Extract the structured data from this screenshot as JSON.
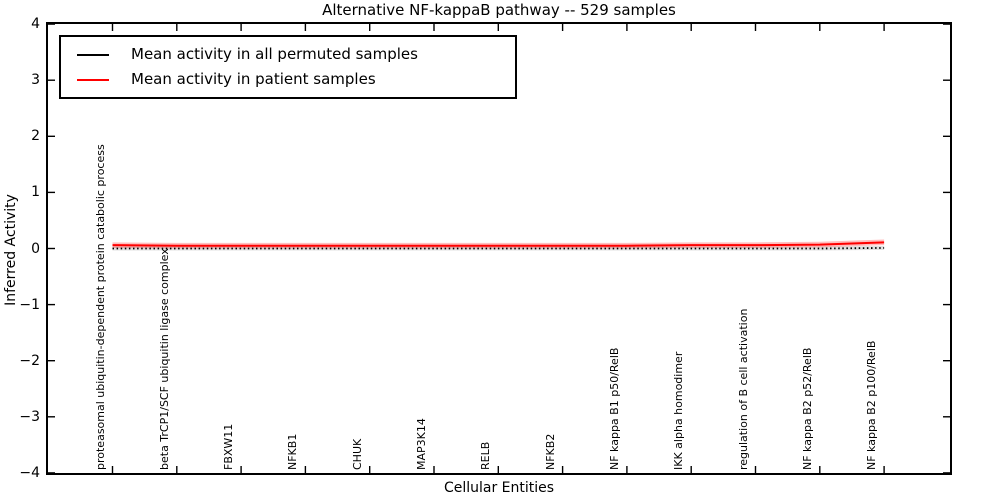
{
  "chart_data": {
    "type": "line",
    "title": "Alternative NF-kappaB pathway -- 529 samples",
    "xlabel": "Cellular Entities",
    "ylabel": "Inferred Activity",
    "ylim": [
      -4,
      4
    ],
    "xlim": [
      -1,
      13
    ],
    "grid": false,
    "legend_position": "upper-left",
    "ytick_labels": [
      "4",
      "3",
      "2",
      "1",
      "0",
      "−1",
      "−2",
      "−3",
      "−4"
    ],
    "ytick_values": [
      4,
      3,
      2,
      1,
      0,
      -1,
      -2,
      -3,
      -4
    ],
    "categories": [
      "proteasomal ubiquitin-dependent protein catabolic process",
      "beta TrCP1/SCF ubiquitin ligase complex",
      "FBXW11",
      "NFKB1",
      "CHUK",
      "MAP3K14",
      "RELB",
      "NFKB2",
      "NF kappa B1 p50/RelB",
      "IKK alpha homodimer",
      "regulation of B cell activation",
      "NF kappa B2 p52/RelB",
      "NF kappa B2 p100/RelB"
    ],
    "series": [
      {
        "name": "Mean activity in all permuted samples",
        "color": "#000000",
        "line_style": "dotted",
        "values": [
          0.0,
          0.0,
          0.0,
          0.0,
          0.0,
          0.0,
          0.0,
          0.0,
          0.0,
          0.0,
          0.0,
          0.0,
          0.01
        ],
        "band_halfwidth": 0.035,
        "band_color": "rgba(0,0,0,0.12)"
      },
      {
        "name": "Mean activity in patient samples",
        "color": "#ff0000",
        "line_style": "solid",
        "values": [
          0.06,
          0.05,
          0.05,
          0.05,
          0.05,
          0.05,
          0.05,
          0.05,
          0.05,
          0.06,
          0.06,
          0.07,
          0.11
        ],
        "band_halfwidth": 0.05,
        "band_color": "rgba(255,0,0,0.25)"
      }
    ]
  }
}
